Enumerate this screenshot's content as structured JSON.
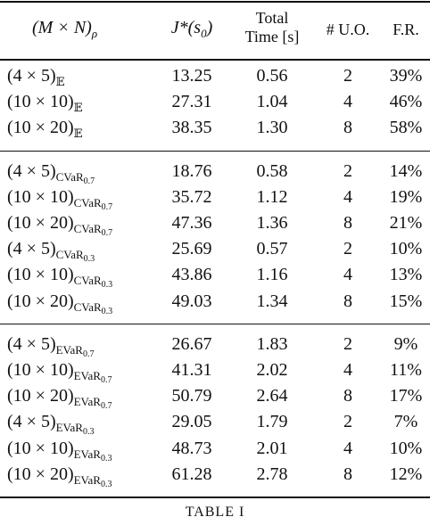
{
  "table": {
    "header": [
      {
        "main": "(M × N)",
        "sub": "ρ"
      },
      {
        "main": "J*(s",
        "sub": "0",
        "tail": ")"
      },
      {
        "lines": [
          "Total",
          "Time [s]"
        ]
      },
      {
        "text": "# U.O."
      },
      {
        "text": "F.R."
      }
    ],
    "groups": [
      [
        {
          "label": {
            "base": "(4 × 5)",
            "sub": "𝔼"
          },
          "cells": [
            "13.25",
            "0.56",
            "2",
            "39%"
          ]
        },
        {
          "label": {
            "base": "(10 × 10)",
            "sub": "𝔼"
          },
          "cells": [
            "27.31",
            "1.04",
            "4",
            "46%"
          ]
        },
        {
          "label": {
            "base": "(10 × 20)",
            "sub": "𝔼"
          },
          "cells": [
            "38.35",
            "1.30",
            "8",
            "58%"
          ]
        }
      ],
      [
        {
          "label": {
            "base": "(4 × 5)",
            "sub": "CVaR",
            "subsub": "0.7"
          },
          "cells": [
            "18.76",
            "0.58",
            "2",
            "14%"
          ]
        },
        {
          "label": {
            "base": "(10 × 10)",
            "sub": "CVaR",
            "subsub": "0.7"
          },
          "cells": [
            "35.72",
            "1.12",
            "4",
            "19%"
          ]
        },
        {
          "label": {
            "base": "(10 × 20)",
            "sub": "CVaR",
            "subsub": "0.7"
          },
          "cells": [
            "47.36",
            "1.36",
            "8",
            "21%"
          ]
        },
        {
          "label": {
            "base": "(4 × 5)",
            "sub": "CVaR",
            "subsub": "0.3"
          },
          "cells": [
            "25.69",
            "0.57",
            "2",
            "10%"
          ]
        },
        {
          "label": {
            "base": "(10 × 10)",
            "sub": "CVaR",
            "subsub": "0.3"
          },
          "cells": [
            "43.86",
            "1.16",
            "4",
            "13%"
          ]
        },
        {
          "label": {
            "base": "(10 × 20)",
            "sub": "CVaR",
            "subsub": "0.3"
          },
          "cells": [
            "49.03",
            "1.34",
            "8",
            "15%"
          ]
        }
      ],
      [
        {
          "label": {
            "base": "(4 × 5)",
            "sub": "EVaR",
            "subsub": "0.7"
          },
          "cells": [
            "26.67",
            "1.83",
            "2",
            "9%"
          ]
        },
        {
          "label": {
            "base": "(10 × 10)",
            "sub": "EVaR",
            "subsub": "0.7"
          },
          "cells": [
            "41.31",
            "2.02",
            "4",
            "11%"
          ]
        },
        {
          "label": {
            "base": "(10 × 20)",
            "sub": "EVaR",
            "subsub": "0.7"
          },
          "cells": [
            "50.79",
            "2.64",
            "8",
            "17%"
          ]
        },
        {
          "label": {
            "base": "(4 × 5)",
            "sub": "EVaR",
            "subsub": "0.3"
          },
          "cells": [
            "29.05",
            "1.79",
            "2",
            "7%"
          ]
        },
        {
          "label": {
            "base": "(10 × 10)",
            "sub": "EVaR",
            "subsub": "0.3"
          },
          "cells": [
            "48.73",
            "2.01",
            "4",
            "10%"
          ]
        },
        {
          "label": {
            "base": "(10 × 20)",
            "sub": "EVaR",
            "subsub": "0.3"
          },
          "cells": [
            "61.28",
            "2.78",
            "8",
            "12%"
          ]
        }
      ]
    ],
    "caption": "TABLE I"
  }
}
